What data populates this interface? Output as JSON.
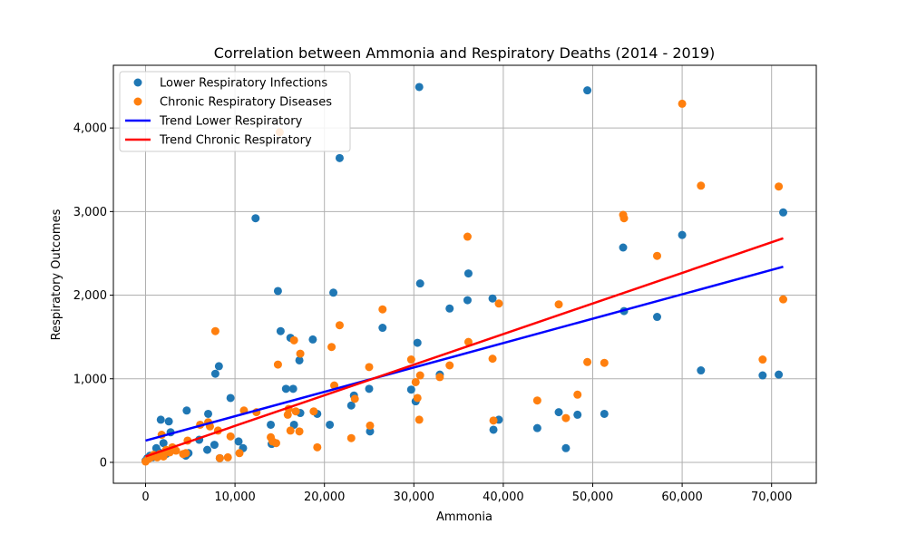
{
  "chart_data": {
    "type": "scatter",
    "title": "Correlation between Ammonia and Respiratory Deaths (2014 - 2019)",
    "xlabel": "Ammonia",
    "ylabel": "Respiratory Outcomes",
    "xlim": [
      -3600,
      75000
    ],
    "ylim": [
      -250,
      4750
    ],
    "xticks": [
      0,
      10000,
      20000,
      30000,
      40000,
      50000,
      60000,
      70000
    ],
    "xtick_labels": [
      "0",
      "10,000",
      "20,000",
      "30,000",
      "40,000",
      "50,000",
      "60,000",
      "70,000"
    ],
    "yticks": [
      0,
      1000,
      2000,
      3000,
      4000
    ],
    "ytick_labels": [
      "0",
      "1,000",
      "2,000",
      "3,000",
      "4,000"
    ],
    "grid": true,
    "legend_position": "top-left",
    "colors": {
      "lower": "#1f77b4",
      "chronic": "#ff7f0e",
      "trend_lower": "#0000ff",
      "trend_chronic": "#ff0000"
    },
    "series": [
      {
        "name": "Lower Respiratory Infections",
        "kind": "scatter",
        "color": "#1f77b4",
        "points": [
          [
            0,
            20
          ],
          [
            200,
            50
          ],
          [
            500,
            80
          ],
          [
            800,
            60
          ],
          [
            1200,
            170
          ],
          [
            1500,
            120
          ],
          [
            1700,
            510
          ],
          [
            2000,
            230
          ],
          [
            2300,
            100
          ],
          [
            2600,
            490
          ],
          [
            2800,
            360
          ],
          [
            3200,
            150
          ],
          [
            4500,
            80
          ],
          [
            4600,
            620
          ],
          [
            4800,
            110
          ],
          [
            6000,
            270
          ],
          [
            6900,
            150
          ],
          [
            7000,
            580
          ],
          [
            7700,
            210
          ],
          [
            7800,
            1060
          ],
          [
            8200,
            1150
          ],
          [
            8300,
            50
          ],
          [
            9500,
            770
          ],
          [
            10400,
            250
          ],
          [
            10900,
            170
          ],
          [
            12300,
            2920
          ],
          [
            14000,
            450
          ],
          [
            14100,
            220
          ],
          [
            14800,
            2050
          ],
          [
            15100,
            1570
          ],
          [
            15700,
            880
          ],
          [
            16200,
            1490
          ],
          [
            16500,
            880
          ],
          [
            16600,
            450
          ],
          [
            17200,
            1220
          ],
          [
            17300,
            590
          ],
          [
            18700,
            1470
          ],
          [
            19200,
            580
          ],
          [
            20600,
            450
          ],
          [
            21000,
            2030
          ],
          [
            21700,
            3640
          ],
          [
            23000,
            680
          ],
          [
            23300,
            800
          ],
          [
            25000,
            880
          ],
          [
            25100,
            370
          ],
          [
            26500,
            1610
          ],
          [
            29700,
            870
          ],
          [
            30200,
            730
          ],
          [
            30400,
            1430
          ],
          [
            30600,
            4490
          ],
          [
            30700,
            2140
          ],
          [
            32900,
            1050
          ],
          [
            34000,
            1840
          ],
          [
            36000,
            1940
          ],
          [
            36100,
            2260
          ],
          [
            38800,
            1960
          ],
          [
            38900,
            390
          ],
          [
            39500,
            510
          ],
          [
            43800,
            410
          ],
          [
            46200,
            600
          ],
          [
            47000,
            170
          ],
          [
            48300,
            570
          ],
          [
            49400,
            4450
          ],
          [
            51300,
            580
          ],
          [
            53400,
            2570
          ],
          [
            53500,
            1810
          ],
          [
            57200,
            1740
          ],
          [
            60000,
            2720
          ],
          [
            62100,
            1100
          ],
          [
            69000,
            1040
          ],
          [
            70800,
            1050
          ],
          [
            71300,
            2990
          ]
        ]
      },
      {
        "name": "Chronic Respiratory Diseases",
        "kind": "scatter",
        "color": "#ff7f0e",
        "points": [
          [
            0,
            10
          ],
          [
            300,
            40
          ],
          [
            600,
            60
          ],
          [
            900,
            90
          ],
          [
            1300,
            60
          ],
          [
            1600,
            100
          ],
          [
            1800,
            330
          ],
          [
            2000,
            70
          ],
          [
            2300,
            150
          ],
          [
            2700,
            120
          ],
          [
            3000,
            180
          ],
          [
            3400,
            140
          ],
          [
            4200,
            100
          ],
          [
            4500,
            110
          ],
          [
            4700,
            260
          ],
          [
            6100,
            450
          ],
          [
            7000,
            480
          ],
          [
            7200,
            430
          ],
          [
            7800,
            1570
          ],
          [
            8100,
            380
          ],
          [
            8300,
            50
          ],
          [
            9200,
            60
          ],
          [
            9500,
            310
          ],
          [
            10500,
            110
          ],
          [
            11000,
            620
          ],
          [
            12400,
            600
          ],
          [
            14000,
            300
          ],
          [
            14200,
            250
          ],
          [
            14600,
            230
          ],
          [
            14800,
            1170
          ],
          [
            15000,
            3950
          ],
          [
            15900,
            570
          ],
          [
            16000,
            640
          ],
          [
            16200,
            380
          ],
          [
            16600,
            1460
          ],
          [
            16800,
            610
          ],
          [
            17200,
            370
          ],
          [
            17300,
            1300
          ],
          [
            18800,
            610
          ],
          [
            19200,
            180
          ],
          [
            20800,
            1380
          ],
          [
            21100,
            920
          ],
          [
            21700,
            1640
          ],
          [
            23000,
            290
          ],
          [
            23400,
            760
          ],
          [
            25000,
            1140
          ],
          [
            25100,
            440
          ],
          [
            26500,
            1830
          ],
          [
            29700,
            1230
          ],
          [
            30200,
            960
          ],
          [
            30400,
            770
          ],
          [
            30600,
            510
          ],
          [
            30700,
            1040
          ],
          [
            32900,
            1020
          ],
          [
            34000,
            1160
          ],
          [
            36000,
            2700
          ],
          [
            36100,
            1440
          ],
          [
            38800,
            1240
          ],
          [
            38900,
            500
          ],
          [
            39500,
            1900
          ],
          [
            43800,
            740
          ],
          [
            46200,
            1890
          ],
          [
            47000,
            530
          ],
          [
            48300,
            810
          ],
          [
            49400,
            1200
          ],
          [
            51300,
            1190
          ],
          [
            53400,
            2960
          ],
          [
            53500,
            2920
          ],
          [
            57200,
            2470
          ],
          [
            60000,
            4290
          ],
          [
            62100,
            3310
          ],
          [
            69000,
            1230
          ],
          [
            70800,
            3300
          ],
          [
            71300,
            1950
          ]
        ]
      },
      {
        "name": "Trend Lower Respiratory",
        "kind": "line",
        "color": "#0000ff",
        "points": [
          [
            0,
            260
          ],
          [
            71300,
            2340
          ]
        ]
      },
      {
        "name": "Trend Chronic Respiratory",
        "kind": "line",
        "color": "#ff0000",
        "points": [
          [
            0,
            70
          ],
          [
            71300,
            2680
          ]
        ]
      }
    ]
  }
}
